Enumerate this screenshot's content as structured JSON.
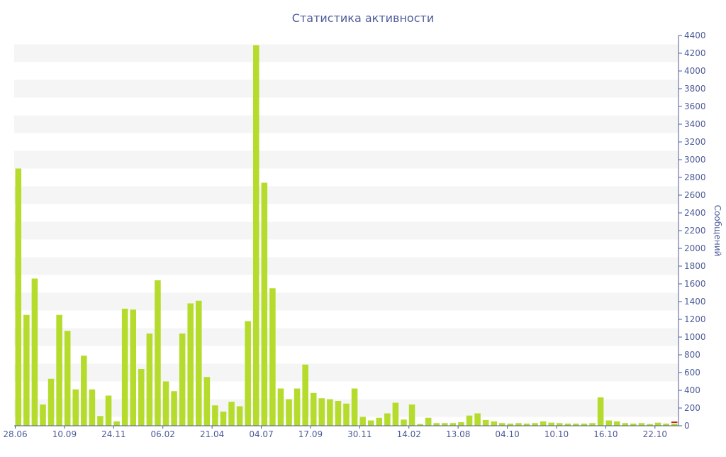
{
  "chart_data": {
    "type": "bar",
    "title": "Статистика активности",
    "xlabel": "",
    "ylabel": "Сообщений",
    "ylim": [
      0,
      4400
    ],
    "y_ticks": [
      0,
      200,
      400,
      600,
      800,
      1000,
      1200,
      1400,
      1600,
      1800,
      2000,
      2200,
      2400,
      2600,
      2800,
      3000,
      3200,
      3400,
      3600,
      3800,
      4000,
      4200,
      4400
    ],
    "y_axis_side": "right",
    "grid": "alternating horizontal bands",
    "x_tick_labels": [
      {
        "label": "28.06",
        "index": 0
      },
      {
        "label": "10.09",
        "index": 6
      },
      {
        "label": "24.11",
        "index": 12
      },
      {
        "label": "06.02",
        "index": 18
      },
      {
        "label": "21.04",
        "index": 24
      },
      {
        "label": "04.07",
        "index": 30
      },
      {
        "label": "17.09",
        "index": 36
      },
      {
        "label": "30.11",
        "index": 42
      },
      {
        "label": "14.02",
        "index": 48
      },
      {
        "label": "13.08",
        "index": 54
      },
      {
        "label": "04.10",
        "index": 60
      },
      {
        "label": "10.10",
        "index": 66
      },
      {
        "label": "16.10",
        "index": 72
      },
      {
        "label": "22.10",
        "index": 78
      }
    ],
    "values": [
      2900,
      1250,
      1660,
      240,
      530,
      1250,
      1070,
      410,
      790,
      410,
      110,
      340,
      50,
      1320,
      1310,
      640,
      1040,
      1640,
      500,
      390,
      1040,
      1380,
      1410,
      550,
      230,
      160,
      270,
      220,
      1180,
      4290,
      2740,
      1550,
      420,
      300,
      420,
      690,
      370,
      310,
      300,
      280,
      250,
      420,
      100,
      60,
      90,
      140,
      260,
      70,
      240,
      20,
      90,
      30,
      30,
      30,
      40,
      115,
      140,
      65,
      50,
      30,
      25,
      30,
      25,
      30,
      50,
      35,
      30,
      25,
      25,
      25,
      30,
      320,
      60,
      50,
      30,
      25,
      30,
      20,
      35,
      25,
      25
    ],
    "highlight_bar": {
      "index": 80,
      "color": "#cc2222"
    },
    "colors": {
      "bar": "#b5dc2c",
      "band": "#f5f5f5",
      "axis": "#4d5b99",
      "text": "#4d5b99"
    }
  }
}
